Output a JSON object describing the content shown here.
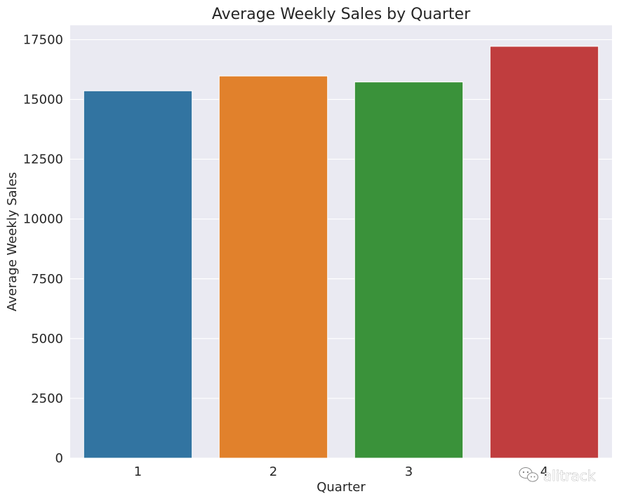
{
  "chart_data": {
    "type": "bar",
    "title": "Average Weekly Sales by Quarter",
    "xlabel": "Quarter",
    "ylabel": "Average Weekly Sales",
    "categories": [
      "1",
      "2",
      "3",
      "4"
    ],
    "values": [
      15360,
      15980,
      15730,
      17220
    ],
    "ylim": [
      0,
      18100
    ],
    "yticks": [
      0,
      2500,
      5000,
      7500,
      10000,
      12500,
      15000,
      17500
    ],
    "grid": true,
    "legend": "none",
    "colors": [
      "#3274a1",
      "#e1812c",
      "#3a923a",
      "#c03d3e"
    ],
    "background": "#eaeaf2"
  },
  "watermark": {
    "text": "alitrack",
    "icon": "wechat-icon"
  }
}
